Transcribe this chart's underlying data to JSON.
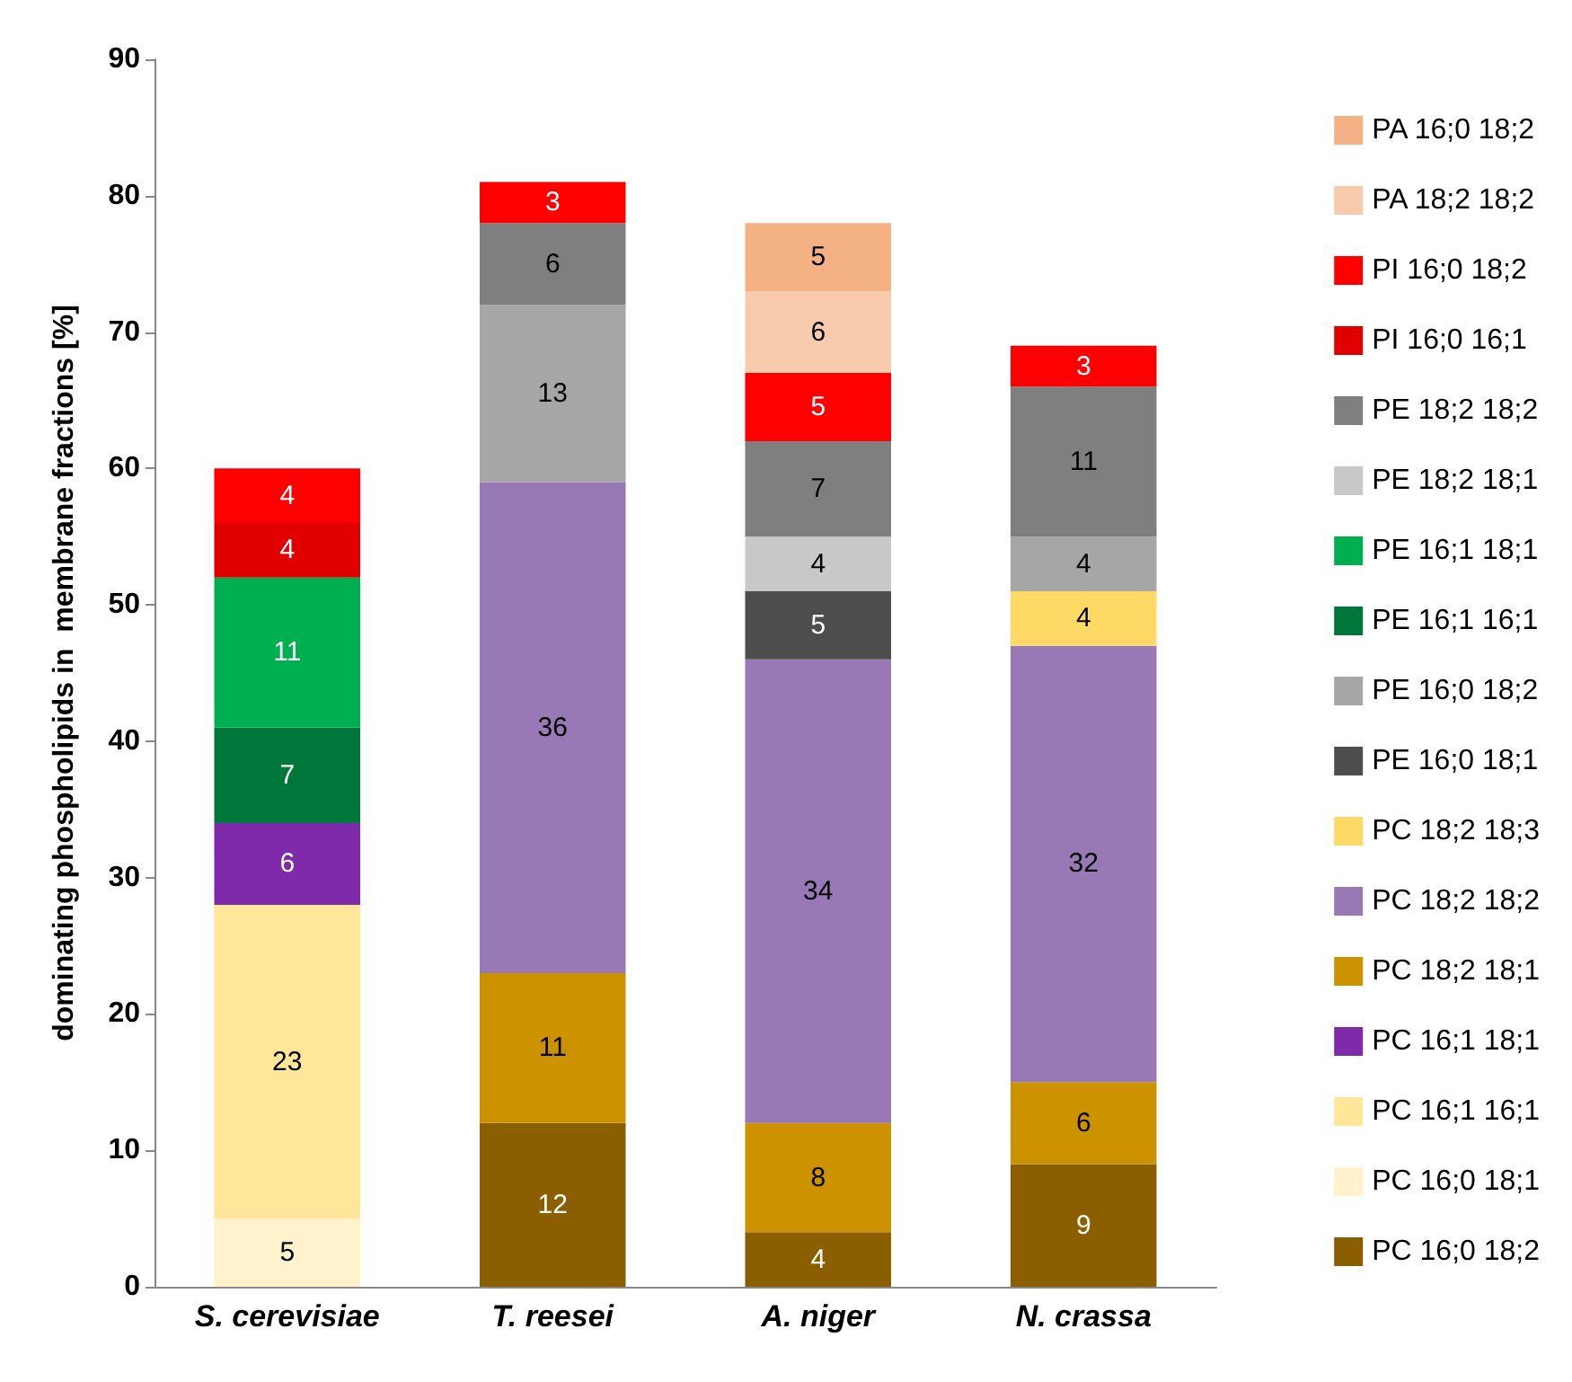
{
  "chart_data": {
    "type": "bar",
    "stacked": true,
    "ylabel": "dominating phospholipids in  membrane fractions [%]",
    "categories": [
      "S. cerevisiae",
      "T. reesei",
      "A. niger",
      "N. crassa"
    ],
    "ylim": [
      0,
      90
    ],
    "yticks": [
      0,
      10,
      20,
      30,
      40,
      50,
      60,
      70,
      80,
      90
    ],
    "grid": false,
    "legend": "right",
    "data_labels": true,
    "series": [
      {
        "name": "PC 16;0 18;2",
        "color": "#8b5e00",
        "values": [
          null,
          12,
          4,
          9
        ]
      },
      {
        "name": "PC 16;0 18;1",
        "color": "#fff2cc",
        "values": [
          5,
          null,
          null,
          null
        ]
      },
      {
        "name": "PC 16;1 16;1",
        "color": "#ffe699",
        "values": [
          23,
          null,
          null,
          null
        ]
      },
      {
        "name": "PC 16;1 18;1",
        "color": "#7f2aa8",
        "values": [
          6,
          null,
          null,
          null
        ]
      },
      {
        "name": "PC 18;2 18;1",
        "color": "#cc9200",
        "values": [
          null,
          11,
          8,
          6
        ]
      },
      {
        "name": "PC 18;2 18;2",
        "color": "#9979b5",
        "values": [
          null,
          36,
          34,
          32
        ]
      },
      {
        "name": "PC 18;2 18;3",
        "color": "#ffd966",
        "values": [
          null,
          null,
          null,
          4
        ]
      },
      {
        "name": "PE 16;0 18;1",
        "color": "#4d4d4d",
        "values": [
          null,
          null,
          5,
          null
        ]
      },
      {
        "name": "PE 16;0 18;2",
        "color": "#a6a6a6",
        "values": [
          null,
          13,
          null,
          4
        ]
      },
      {
        "name": "PE 16;1 16;1",
        "color": "#00773a",
        "values": [
          7,
          null,
          null,
          null
        ]
      },
      {
        "name": "PE 16;1 18;1",
        "color": "#00b050",
        "values": [
          11,
          null,
          null,
          null
        ]
      },
      {
        "name": "PE 18;2 18;1",
        "color": "#c8c8c8",
        "values": [
          null,
          null,
          4,
          null
        ]
      },
      {
        "name": "PE 18;2 18;2",
        "color": "#7f7f7f",
        "values": [
          null,
          6,
          7,
          11
        ]
      },
      {
        "name": "PI 16;0 16;1",
        "color": "#e00000",
        "values": [
          4,
          null,
          null,
          null
        ]
      },
      {
        "name": "PI 16;0 18;2",
        "color": "#ff0000",
        "values": [
          4,
          3,
          5,
          3
        ]
      },
      {
        "name": "PA 18;2 18;2",
        "color": "#f8cbad",
        "values": [
          null,
          null,
          6,
          null
        ]
      },
      {
        "name": "PA 16;0 18;2",
        "color": "#f4b183",
        "values": [
          null,
          null,
          5,
          null
        ]
      }
    ]
  }
}
